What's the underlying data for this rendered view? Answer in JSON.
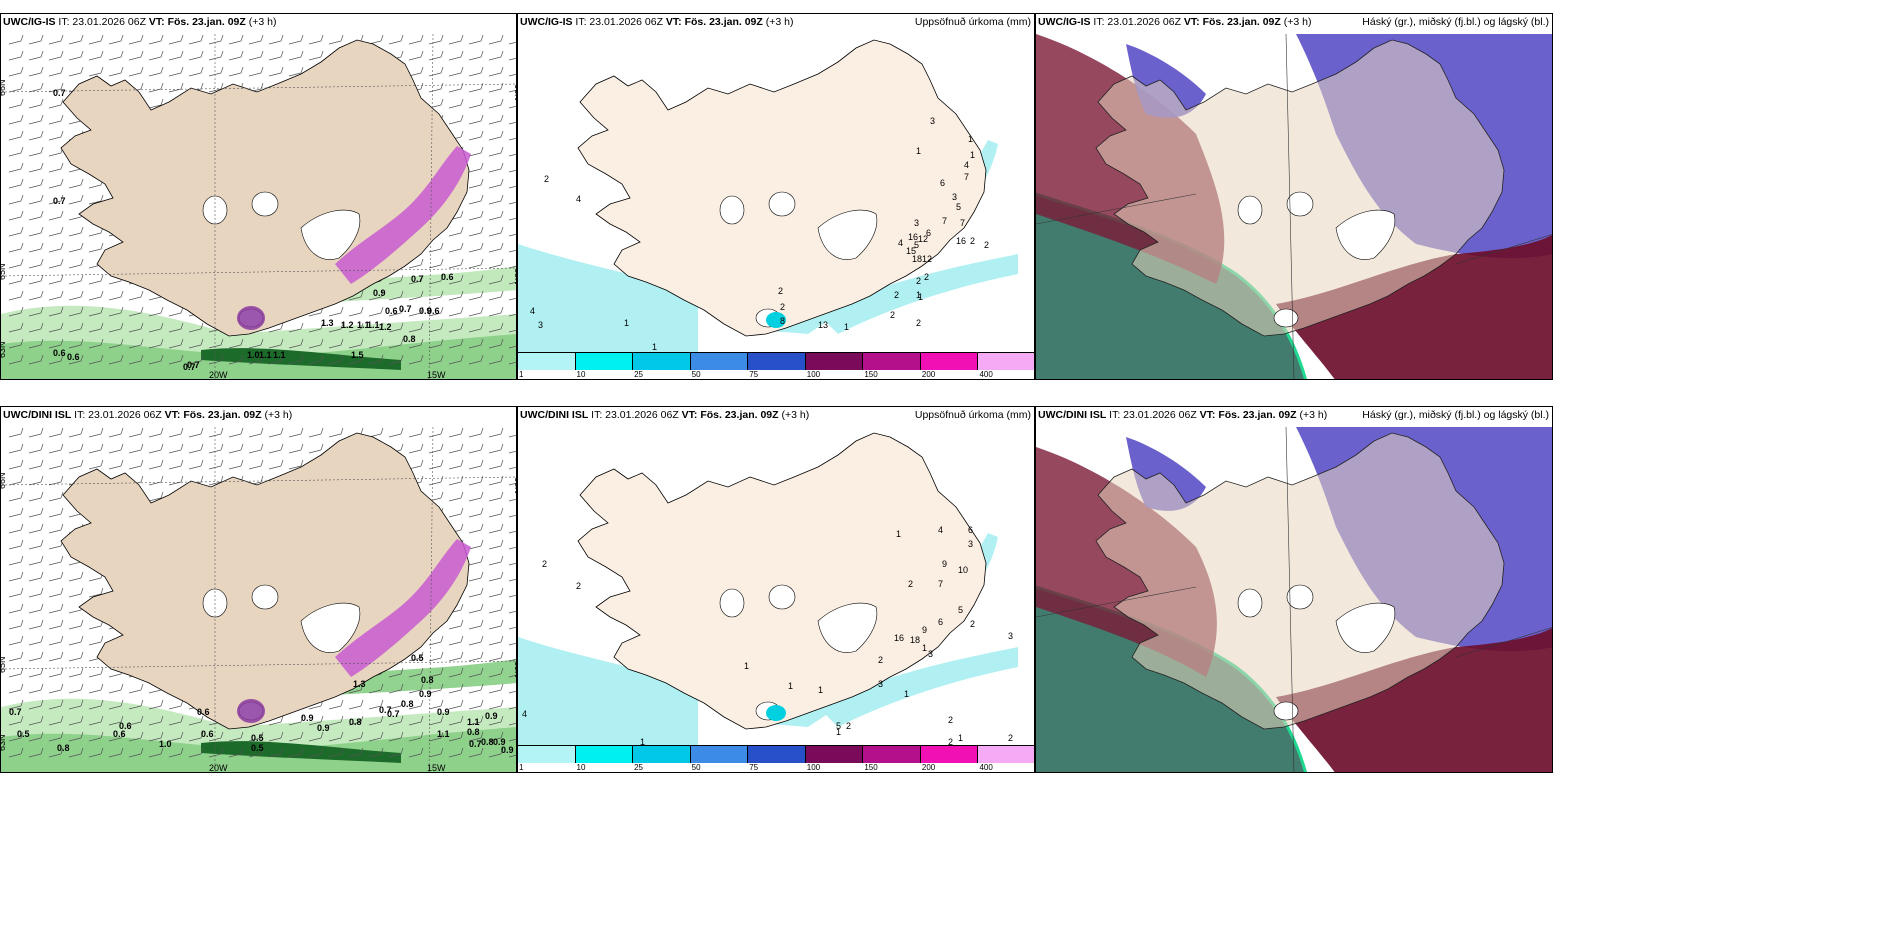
{
  "rows": [
    {
      "model": "UWC/IG-IS",
      "issue": "IT: 23.01.2026 06Z",
      "vt_label": "VT:",
      "vt_value": "Fös. 23.jan. 09Z",
      "lead": "(+3 h)",
      "wind_values": [
        "0.7",
        "0.7",
        "0.7",
        "0.6",
        "1.3",
        "1.2",
        "1.1",
        "1.1",
        "1.2",
        "0.9",
        "0.7",
        "0.6",
        "0.6",
        "0.9",
        "0.8",
        "0.7",
        "0.6",
        "0.6",
        "0.7",
        "1.0",
        "1.1",
        "1.1",
        "1.5"
      ],
      "precip_values": [
        "2",
        "4",
        "4",
        "3",
        "1",
        "1",
        "3",
        "1",
        "1",
        "1",
        "4",
        "7",
        "6",
        "3",
        "5",
        "7",
        "7",
        "6",
        "3",
        "5",
        "4",
        "16",
        "15",
        "12",
        "18",
        "12",
        "16",
        "2",
        "2",
        "2",
        "2",
        "1",
        "2",
        "2",
        "1",
        "2",
        "2",
        "8",
        "13",
        "2",
        "1"
      ],
      "axis_labels": [
        "66N",
        "65N",
        "20W",
        "15W",
        "66N",
        "65N",
        "63N"
      ]
    },
    {
      "model": "UWC/DINI ISL",
      "issue": "IT: 23.01.2026 06Z",
      "vt_label": "VT:",
      "vt_value": "Fös. 23.jan. 09Z",
      "lead": "(+3 h)",
      "wind_values": [
        "0.7",
        "0.5",
        "0.8",
        "0.6",
        "1.0",
        "0.5",
        "0.6",
        "0.6",
        "0.5",
        "0.9",
        "0.8",
        "0.7",
        "1.1",
        "0.9",
        "0.8",
        "0.8",
        "0.7",
        "1.1",
        "0.9",
        "0.5",
        "0.8",
        "0.6",
        "1.3",
        "0.9",
        "0.8",
        "0.9",
        "0.7",
        "0.9",
        "0.9"
      ],
      "precip_values": [
        "2",
        "2",
        "4",
        "1",
        "1",
        "1",
        "1",
        "1",
        "4",
        "6",
        "3",
        "9",
        "10",
        "7",
        "2",
        "16",
        "18",
        "9",
        "6",
        "5",
        "2",
        "3",
        "1",
        "3",
        "2",
        "3",
        "1",
        "2",
        "2",
        "1",
        "2",
        "2",
        "1",
        "5"
      ],
      "axis_labels": [
        "66N",
        "65N",
        "20W",
        "15W",
        "66N",
        "65N",
        "63N"
      ]
    }
  ],
  "precip_title": "Uppsöfnuð úrkoma (mm)",
  "cloud_title": "Háský (gr.), miðský (fj.bl.) og lágský (bl.)",
  "colorbar": {
    "labels": [
      "1",
      "10",
      "25",
      "50",
      "75",
      "100",
      "150",
      "200",
      "400"
    ],
    "colors": [
      "#b3f5f7",
      "#00f0f0",
      "#00c8e6",
      "#3c8ce6",
      "#2850c8",
      "#7a0a5a",
      "#b4108c",
      "#f010b4",
      "#f5aaf5"
    ]
  },
  "colors": {
    "land": "#e8d5c0",
    "land_precip": "#fbeee2",
    "sea_precip": "#b0f0f3",
    "green_light": "#b7e5b0",
    "green_dark": "#1d6b2a",
    "magenta": "#c85ad0",
    "cloud_blue": "#5a50c8",
    "cloud_red": "#7a1a36",
    "cloud_teal": "#2d6e5e",
    "cloud_mint": "#20d890"
  }
}
